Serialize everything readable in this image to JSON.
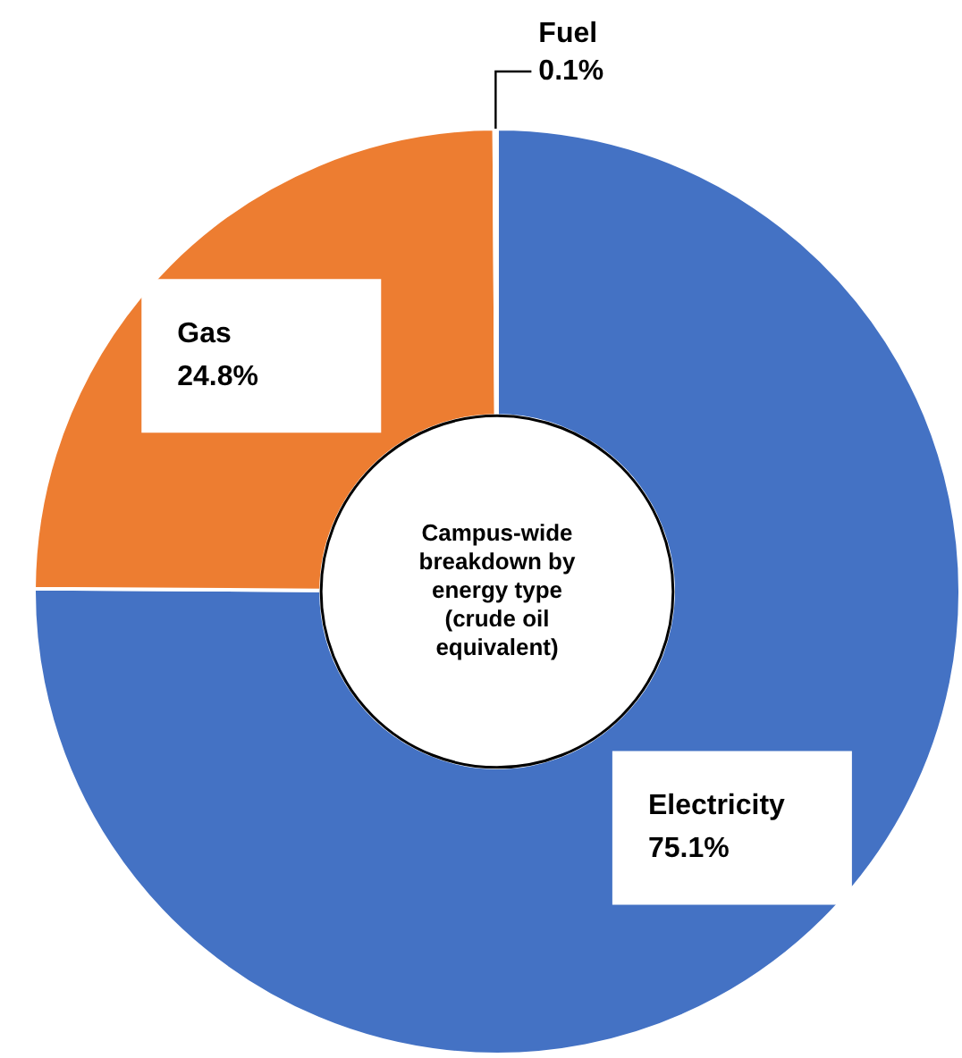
{
  "chart_data": {
    "type": "donut",
    "title": "Campus-wide breakdown by energy type (crude oil equivalent)",
    "categories": [
      "Electricity",
      "Gas",
      "Fuel"
    ],
    "values": [
      75.1,
      24.8,
      0.1
    ],
    "colors": [
      "#4472c4",
      "#ed7d31",
      "#a5a5a5"
    ],
    "value_labels": [
      "75.1%",
      "24.8%",
      "0.1%"
    ],
    "legend": false
  }
}
